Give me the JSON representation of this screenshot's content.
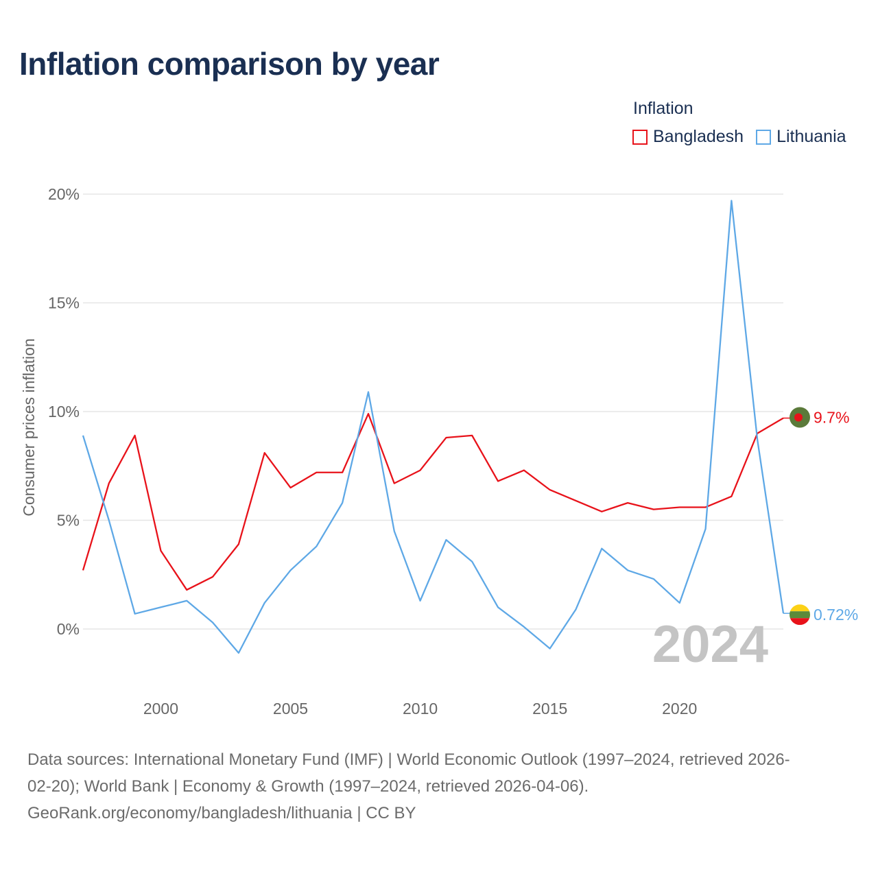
{
  "title": "Inflation comparison by year",
  "legend": {
    "title": "Inflation",
    "items": [
      {
        "label": "Bangladesh",
        "color": "#e8121a"
      },
      {
        "label": "Lithuania",
        "color": "#5ea8e6"
      }
    ]
  },
  "chart_data": {
    "type": "line",
    "title": "Inflation comparison by year",
    "xlabel": "",
    "ylabel": "Consumer prices inflation",
    "x": [
      1997,
      1998,
      1999,
      2000,
      2001,
      2002,
      2003,
      2004,
      2005,
      2006,
      2007,
      2008,
      2009,
      2010,
      2011,
      2012,
      2013,
      2014,
      2015,
      2016,
      2017,
      2018,
      2019,
      2020,
      2021,
      2022,
      2023,
      2024
    ],
    "xlim": [
      1997,
      2024
    ],
    "ylim": [
      -3,
      20
    ],
    "x_ticks": [
      "2000",
      "2005",
      "2010",
      "2015",
      "2020"
    ],
    "y_ticks": [
      "0%",
      "5%",
      "10%",
      "15%",
      "20%"
    ],
    "grid": true,
    "series": [
      {
        "name": "Bangladesh",
        "color": "#e8121a",
        "values": [
          2.7,
          6.7,
          8.9,
          3.6,
          1.8,
          2.4,
          3.9,
          8.1,
          6.5,
          7.2,
          7.2,
          9.9,
          6.7,
          7.3,
          8.8,
          8.9,
          6.8,
          7.3,
          6.4,
          5.9,
          5.4,
          5.8,
          5.5,
          5.6,
          5.6,
          6.1,
          9.0,
          9.7
        ],
        "end_label": "9.7%"
      },
      {
        "name": "Lithuania",
        "color": "#5ea8e6",
        "values": [
          8.9,
          5.0,
          0.7,
          1.0,
          1.3,
          0.3,
          -1.1,
          1.2,
          2.7,
          3.8,
          5.8,
          10.9,
          4.5,
          1.3,
          4.1,
          3.1,
          1.0,
          0.1,
          -0.9,
          0.9,
          3.7,
          2.7,
          2.3,
          1.2,
          4.6,
          19.7,
          8.7,
          0.72
        ],
        "end_label": "0.72%"
      }
    ],
    "year_watermark": "2024"
  },
  "flags": {
    "bangladesh": {
      "green": "#5b7a3a",
      "red": "#e8121a"
    },
    "lithuania": {
      "yellow": "#fcd116",
      "green": "#5b8a3a",
      "red": "#e8121a"
    }
  },
  "source": {
    "line1": "Data sources: International Monetary Fund (IMF) | World Economic Outlook (1997–2024, retrieved 2026-",
    "line2": "02-20); World Bank | Economy & Growth (1997–2024, retrieved 2026-04-06).",
    "line3": "GeoRank.org/economy/bangladesh/lithuania | CC BY"
  }
}
